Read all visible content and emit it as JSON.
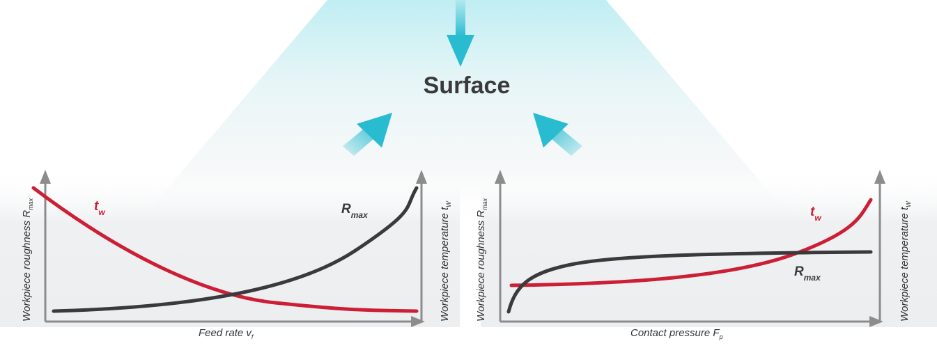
{
  "title": "Surface",
  "colors": {
    "accent_arrow": "#29bcd0",
    "glow": "#c8eef2",
    "curve_tw": "#cc1f35",
    "curve_rmax": "#3a3a3c",
    "axis": "#8c8c8c"
  },
  "left_panel": {
    "y_left_label": "Workpiece roughness R",
    "y_left_sub": "max",
    "y_right_label": "Workpiece temperature t",
    "y_right_sub": "W",
    "x_label": "Feed rate v",
    "x_sub": "f",
    "tw_label": "t",
    "tw_sub": "w",
    "rmax_label": "R",
    "rmax_sub": "max"
  },
  "right_panel": {
    "y_left_label": "Workpiece roughness R",
    "y_left_sub": "max",
    "y_right_label": "Workpiece temperature t",
    "y_right_sub": "W",
    "x_label": "Contact pressure F",
    "x_sub": "p",
    "tw_label": "t",
    "tw_sub": "w",
    "rmax_label": "R",
    "rmax_sub": "max"
  }
}
